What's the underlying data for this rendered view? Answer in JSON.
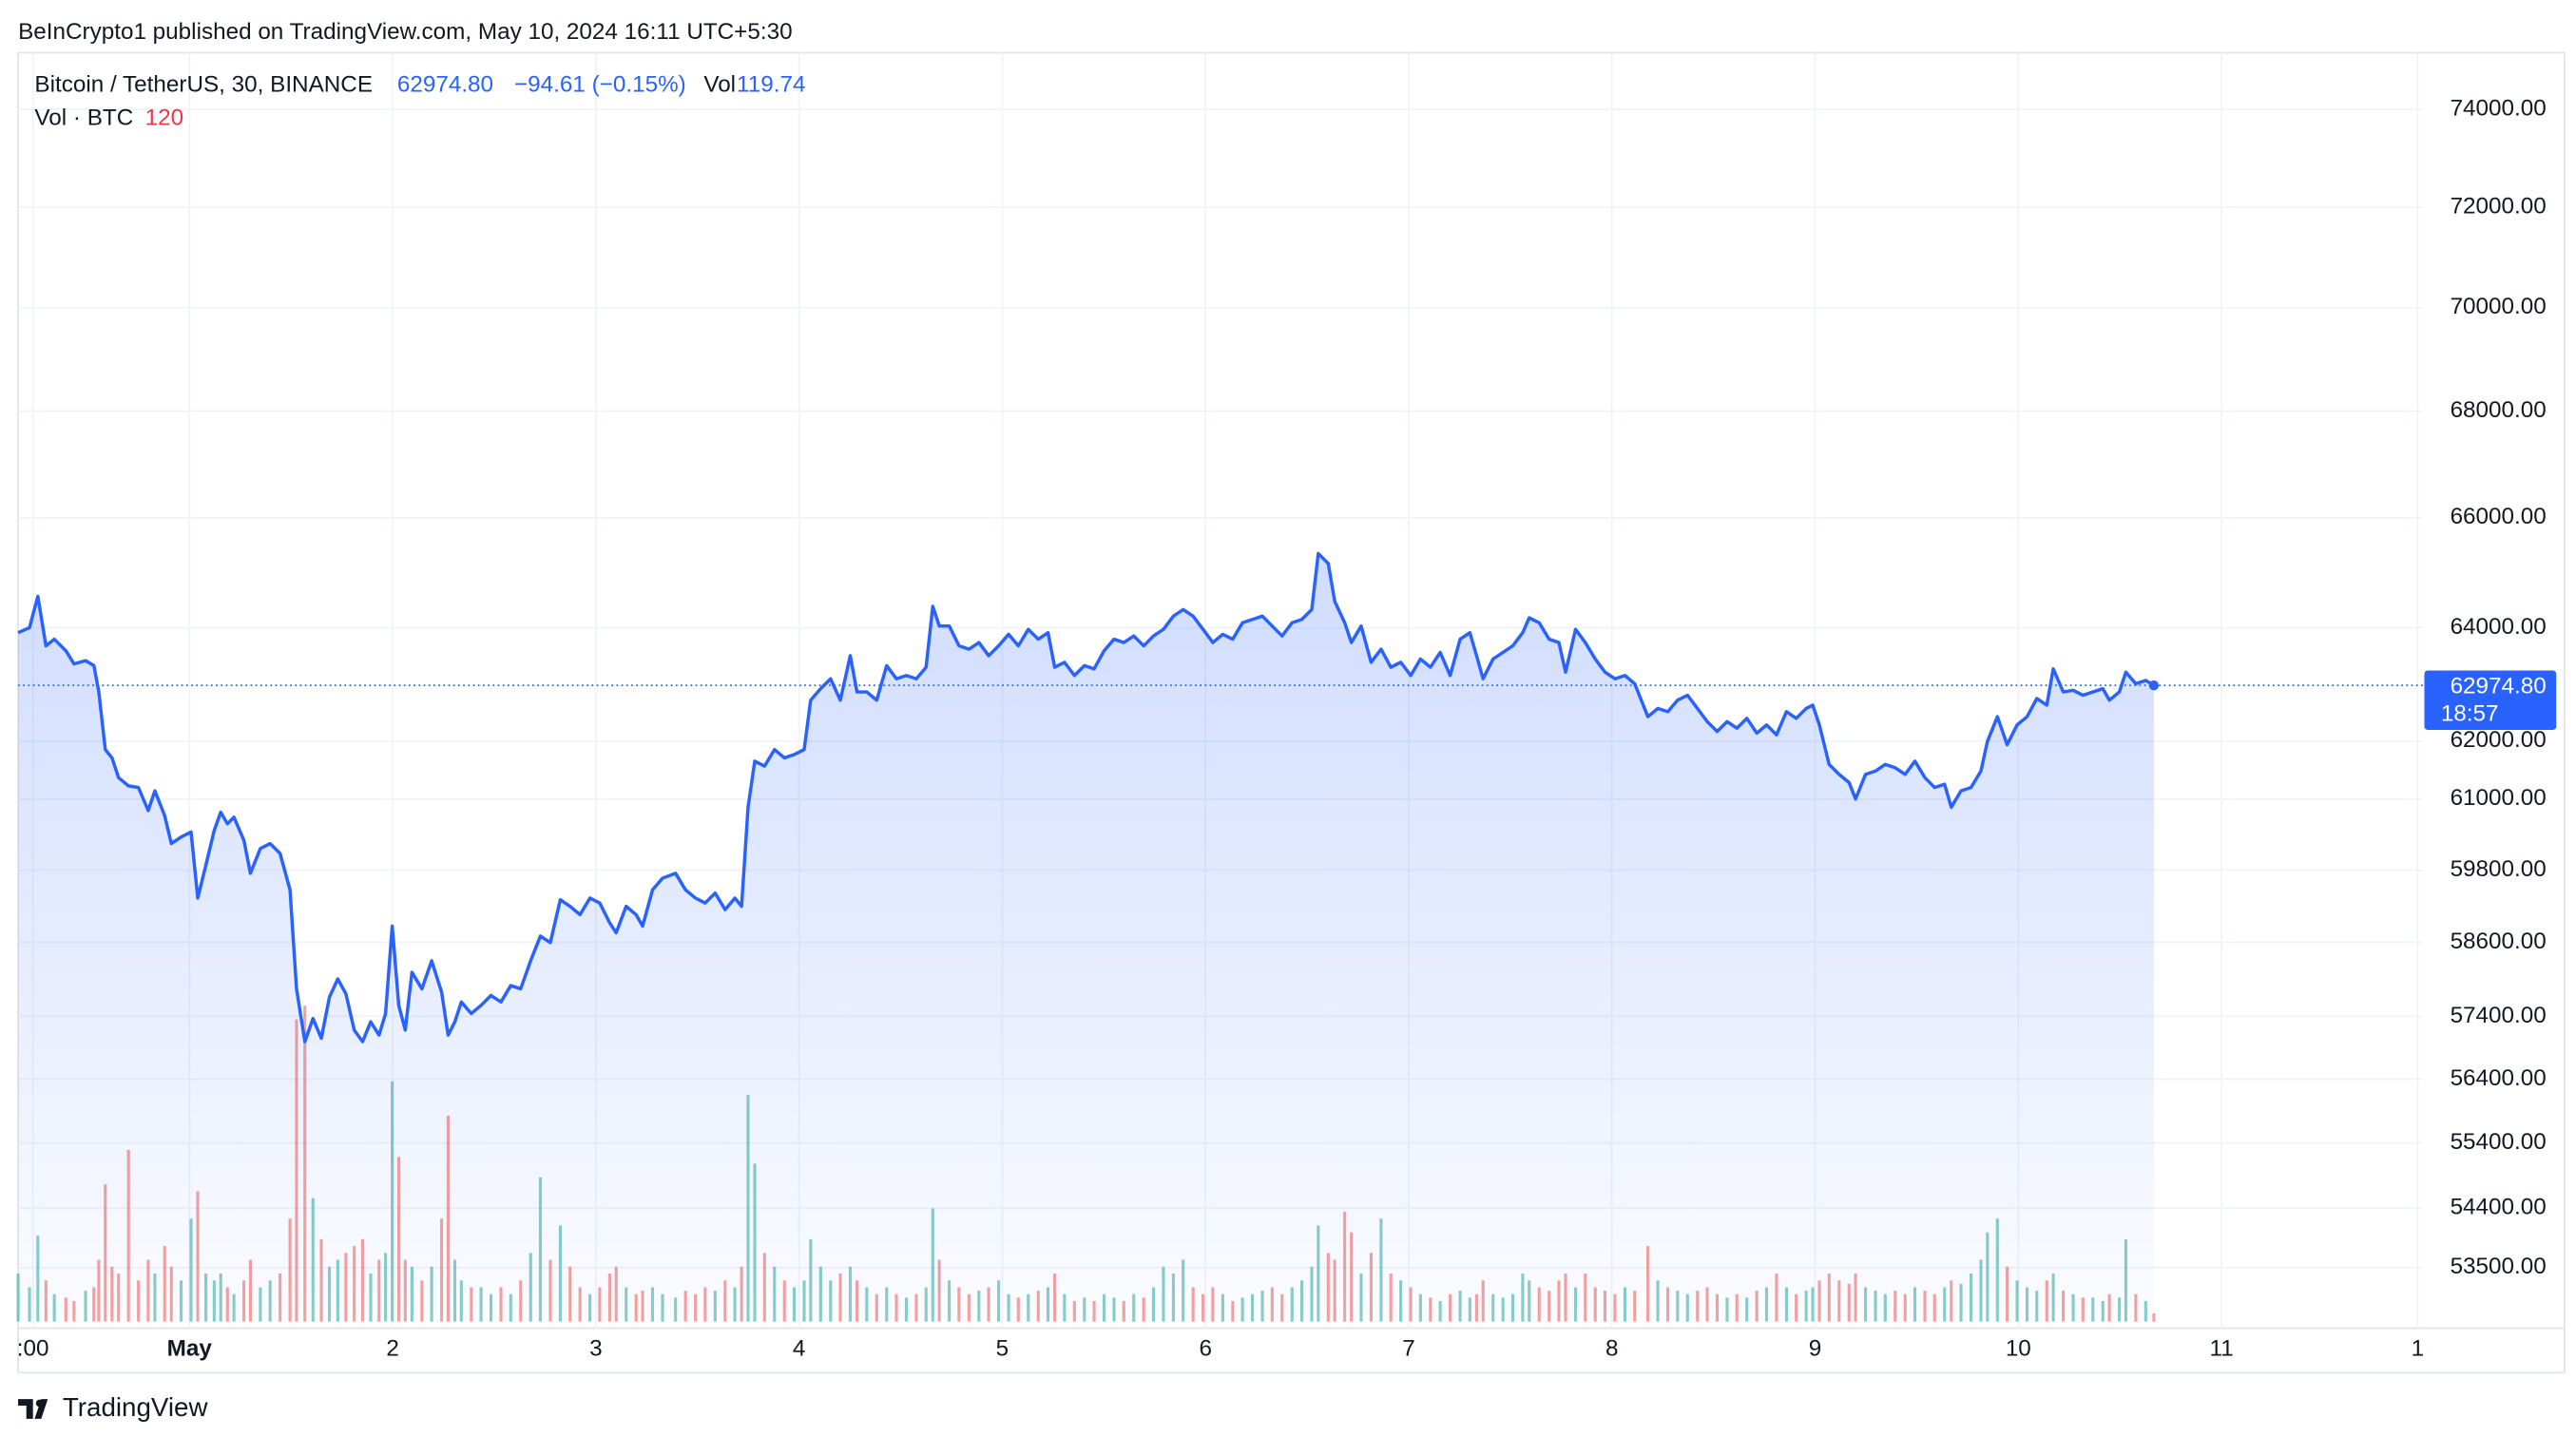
{
  "header": {
    "attribution": "BeInCrypto1 published on TradingView.com, May 10, 2024 16:11 UTC+5:30"
  },
  "chart_data": {
    "type": "line",
    "symbol": "Bitcoin / TetherUS, 30, BINANCE",
    "last_price": "62974.80",
    "change": "−94.61 (−0.15%)",
    "vol_label": "Vol",
    "vol_value": "119.74",
    "volume_title": "Vol · BTC",
    "volume_setting": "120",
    "countdown": "18:57",
    "color": "#2962ff",
    "up_color": "#26a69a",
    "down_color": "#ef5350",
    "log_scale": true,
    "grid": true,
    "xlim": [
      0.157,
      11.99
    ],
    "xticks": [
      {
        "value": 0.23,
        "label": ":00"
      },
      {
        "value": 1,
        "label": "May"
      },
      2,
      3,
      4,
      5,
      6,
      7,
      8,
      9,
      10,
      11,
      {
        "value": 11.965,
        "label": "1"
      }
    ],
    "ylim": [
      52600,
      75180
    ],
    "yticks": [
      {
        "value": 74000,
        "label": "74000.00"
      },
      {
        "value": 72000,
        "label": "72000.00"
      },
      {
        "value": 70000,
        "label": "70000.00"
      },
      {
        "value": 68000,
        "label": "68000.00"
      },
      {
        "value": 66000,
        "label": "66000.00"
      },
      {
        "value": 64000,
        "label": "64000.00"
      },
      {
        "value": 62000,
        "label": "62000.00"
      },
      {
        "value": 61000,
        "label": "61000.00"
      },
      {
        "value": 59800,
        "label": "59800.00"
      },
      {
        "value": 58600,
        "label": "58600.00"
      },
      {
        "value": 57400,
        "label": "57400.00"
      },
      {
        "value": 56400,
        "label": "56400.00"
      },
      {
        "value": 55400,
        "label": "55400.00"
      },
      {
        "value": 54400,
        "label": "54400.00"
      },
      {
        "value": 53500,
        "label": "53500.00"
      }
    ],
    "volume_ylim": [
      0,
      4800
    ],
    "x": [
      0.157,
      0.213,
      0.254,
      0.294,
      0.335,
      0.392,
      0.432,
      0.489,
      0.53,
      0.554,
      0.586,
      0.619,
      0.651,
      0.7,
      0.749,
      0.797,
      0.83,
      0.878,
      0.911,
      0.959,
      1.008,
      1.041,
      1.081,
      1.122,
      1.154,
      1.187,
      1.219,
      1.268,
      1.3,
      1.349,
      1.397,
      1.446,
      1.495,
      1.527,
      1.568,
      1.608,
      1.649,
      1.689,
      1.73,
      1.77,
      1.811,
      1.852,
      1.892,
      1.933,
      1.965,
      1.998,
      2.03,
      2.062,
      2.095,
      2.144,
      2.192,
      2.241,
      2.273,
      2.306,
      2.338,
      2.387,
      2.435,
      2.484,
      2.533,
      2.581,
      2.63,
      2.679,
      2.727,
      2.776,
      2.825,
      2.873,
      2.922,
      2.971,
      3.019,
      3.068,
      3.1,
      3.149,
      3.198,
      3.23,
      3.279,
      3.328,
      3.392,
      3.441,
      3.49,
      3.538,
      3.587,
      3.636,
      3.684,
      3.717,
      3.749,
      3.782,
      3.83,
      3.879,
      3.928,
      3.976,
      4.025,
      4.057,
      4.106,
      4.155,
      4.203,
      4.252,
      4.285,
      4.333,
      4.382,
      4.431,
      4.479,
      4.528,
      4.577,
      4.625,
      4.658,
      4.69,
      4.739,
      4.787,
      4.836,
      4.885,
      4.933,
      4.982,
      5.031,
      5.079,
      5.128,
      5.177,
      5.225,
      5.258,
      5.306,
      5.355,
      5.404,
      5.452,
      5.501,
      5.55,
      5.598,
      5.647,
      5.696,
      5.744,
      5.793,
      5.842,
      5.89,
      5.939,
      5.988,
      6.036,
      6.085,
      6.134,
      6.182,
      6.231,
      6.28,
      6.328,
      6.377,
      6.426,
      6.474,
      6.523,
      6.555,
      6.604,
      6.636,
      6.685,
      6.718,
      6.766,
      6.815,
      6.864,
      6.912,
      6.961,
      7.01,
      7.058,
      7.107,
      7.155,
      7.204,
      7.253,
      7.301,
      7.334,
      7.366,
      7.415,
      7.464,
      7.512,
      7.561,
      7.593,
      7.642,
      7.691,
      7.739,
      7.772,
      7.821,
      7.869,
      7.918,
      7.966,
      8.015,
      8.064,
      8.112,
      8.177,
      8.226,
      8.275,
      8.323,
      8.372,
      8.421,
      8.469,
      8.518,
      8.567,
      8.615,
      8.664,
      8.713,
      8.761,
      8.81,
      8.859,
      8.907,
      8.956,
      8.988,
      9.021,
      9.069,
      9.118,
      9.167,
      9.199,
      9.248,
      9.297,
      9.345,
      9.394,
      9.443,
      9.491,
      9.54,
      9.588,
      9.637,
      9.67,
      9.718,
      9.767,
      9.816,
      9.848,
      9.897,
      9.945,
      9.994,
      10.043,
      10.091,
      10.14,
      10.172,
      10.221,
      10.27,
      10.318,
      10.367,
      10.416,
      10.448,
      10.497,
      10.529,
      10.578,
      10.627,
      10.667
    ],
    "values": [
      63911,
      64000,
      64564,
      63676,
      63794,
      63588,
      63354,
      63412,
      63324,
      62859,
      61852,
      61709,
      61369,
      61227,
      61199,
      60805,
      61142,
      60720,
      60246,
      60357,
      60441,
      59333,
      59885,
      60468,
      60777,
      60580,
      60692,
      60301,
      59747,
      60162,
      60246,
      60079,
      59471,
      57844,
      56995,
      57365,
      57048,
      57710,
      58004,
      57764,
      57180,
      56995,
      57312,
      57100,
      57445,
      58869,
      57577,
      57180,
      58112,
      57844,
      58300,
      57790,
      57100,
      57312,
      57631,
      57445,
      57577,
      57737,
      57631,
      57897,
      57844,
      58300,
      58705,
      58597,
      59306,
      59196,
      59058,
      59333,
      59251,
      58923,
      58760,
      59196,
      59058,
      58869,
      59471,
      59664,
      59747,
      59471,
      59333,
      59251,
      59416,
      59141,
      59333,
      59196,
      60861,
      61652,
      61567,
      61852,
      61709,
      61766,
      61852,
      62714,
      62917,
      63091,
      62714,
      63500,
      62859,
      62859,
      62714,
      63324,
      63091,
      63149,
      63091,
      63295,
      64385,
      64030,
      64030,
      63676,
      63617,
      63735,
      63500,
      63676,
      63882,
      63676,
      63970,
      63794,
      63911,
      63295,
      63383,
      63149,
      63324,
      63266,
      63588,
      63794,
      63735,
      63852,
      63676,
      63852,
      63970,
      64207,
      64326,
      64207,
      63970,
      63735,
      63882,
      63794,
      64089,
      64148,
      64207,
      64030,
      63852,
      64089,
      64148,
      64326,
      65343,
      65162,
      64474,
      64089,
      63735,
      64030,
      63383,
      63617,
      63295,
      63383,
      63149,
      63441,
      63295,
      63559,
      63149,
      63794,
      63911,
      63500,
      63091,
      63441,
      63559,
      63676,
      63911,
      64178,
      64089,
      63794,
      63735,
      63208,
      63970,
      63735,
      63441,
      63208,
      63091,
      63149,
      63004,
      62425,
      62569,
      62512,
      62714,
      62801,
      62569,
      62339,
      62167,
      62339,
      62224,
      62396,
      62138,
      62281,
      62109,
      62512,
      62396,
      62569,
      62627,
      62281,
      61596,
      61425,
      61284,
      61001,
      61425,
      61482,
      61596,
      61539,
      61425,
      61652,
      61369,
      61199,
      61255,
      60861,
      61142,
      61199,
      61482,
      61995,
      62425,
      61937,
      62281,
      62425,
      62743,
      62627,
      63266,
      62859,
      62888,
      62801,
      62859,
      62917,
      62714,
      62859,
      63208,
      63004,
      63062,
      62974.8
    ],
    "volume": [
      700,
      500,
      1250,
      600,
      400,
      350,
      300,
      450,
      500,
      900,
      2000,
      800,
      700,
      2500,
      600,
      900,
      700,
      1100,
      800,
      600,
      1500,
      1900,
      700,
      600,
      700,
      500,
      400,
      600,
      900,
      500,
      600,
      700,
      1500,
      4400,
      4600,
      1800,
      1200,
      800,
      900,
      1000,
      1100,
      1200,
      700,
      900,
      1000,
      3500,
      2400,
      900,
      800,
      600,
      800,
      1500,
      3000,
      900,
      600,
      500,
      500,
      400,
      500,
      400,
      600,
      1000,
      2100,
      900,
      1400,
      800,
      500,
      400,
      500,
      700,
      800,
      500,
      400,
      450,
      500,
      400,
      350,
      450,
      400,
      500,
      450,
      600,
      500,
      800,
      3300,
      2300,
      1000,
      800,
      600,
      500,
      600,
      1200,
      800,
      600,
      700,
      800,
      600,
      500,
      400,
      500,
      400,
      350,
      400,
      500,
      1650,
      900,
      600,
      500,
      400,
      450,
      500,
      600,
      400,
      350,
      400,
      450,
      500,
      700,
      400,
      300,
      350,
      300,
      400,
      350,
      300,
      400,
      350,
      500,
      800,
      700,
      900,
      500,
      400,
      500,
      400,
      300,
      350,
      400,
      450,
      500,
      400,
      500,
      600,
      800,
      1400,
      1000,
      900,
      1600,
      1300,
      700,
      1000,
      1500,
      700,
      600,
      500,
      400,
      350,
      300,
      400,
      450,
      350,
      400,
      600,
      400,
      350,
      400,
      700,
      600,
      500,
      450,
      600,
      700,
      500,
      700,
      500,
      450,
      400,
      500,
      450,
      1100,
      600,
      500,
      450,
      400,
      450,
      500,
      400,
      350,
      400,
      350,
      450,
      500,
      700,
      500,
      400,
      450,
      500,
      600,
      700,
      600,
      550,
      700,
      500,
      450,
      400,
      450,
      400,
      500,
      450,
      400,
      500,
      600,
      550,
      700,
      900,
      1300,
      1500,
      800,
      600,
      500,
      450,
      600,
      700,
      450,
      400,
      350,
      350,
      300,
      400,
      350,
      1200,
      400,
      300,
      119.74
    ]
  },
  "footer": {
    "brand": "TradingView"
  }
}
